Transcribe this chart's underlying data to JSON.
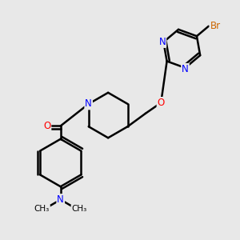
{
  "background_color": "#e8e8e8",
  "atom_colors": {
    "N": "#0000ff",
    "O": "#ff0000",
    "Br": "#cc6600"
  },
  "bond_color": "#000000",
  "bond_width": 1.8,
  "figsize": [
    3.0,
    3.0
  ],
  "dpi": 100
}
